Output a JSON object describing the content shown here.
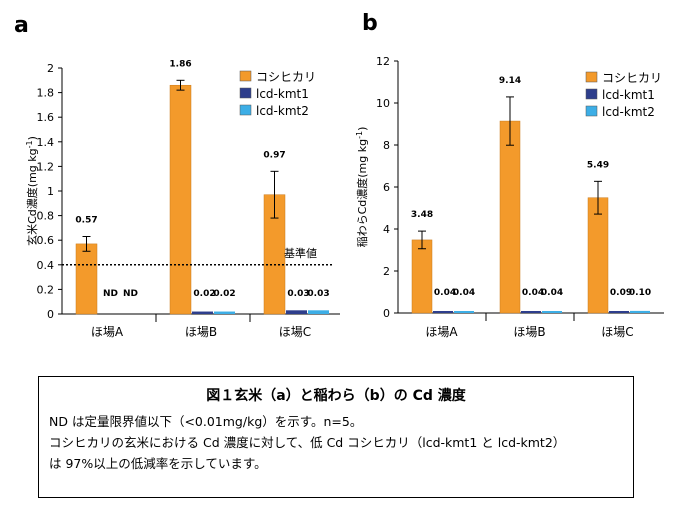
{
  "chart_data": [
    {
      "panel_label": "a",
      "type": "bar",
      "ylabel": "玄米Cd濃度(mg kg",
      "ylabel_sup": "-1",
      "ylabel_close": ")",
      "ylim": [
        0,
        2
      ],
      "yticks": [
        "0",
        "0.2",
        "0.4",
        "0.6",
        "0.8",
        "1",
        "1.2",
        "1.4",
        "1.6",
        "1.8",
        "2"
      ],
      "categories": [
        "ほ場A",
        "ほ場B",
        "ほ場C"
      ],
      "series": [
        {
          "name": "コシヒカリ",
          "color": "#F39A2B",
          "values": [
            0.57,
            1.86,
            0.97
          ],
          "errors": [
            0.06,
            0.04,
            0.19
          ],
          "labels": [
            "0.57",
            "1.86",
            "0.97"
          ]
        },
        {
          "name": "lcd-kmt1",
          "color": "#2E3E8C",
          "values": [
            0,
            0.02,
            0.03
          ],
          "errors": [
            0,
            0,
            0
          ],
          "labels": [
            "ND",
            "0.02",
            "0.03"
          ]
        },
        {
          "name": "lcd-kmt2",
          "color": "#3DAEE6",
          "values": [
            0,
            0.02,
            0.03
          ],
          "errors": [
            0,
            0,
            0
          ],
          "labels": [
            "ND",
            "0.02",
            "0.03"
          ]
        }
      ],
      "reference_line": {
        "value": 0.4,
        "label": "基準値"
      },
      "grid": false,
      "legend": "top-right"
    },
    {
      "panel_label": "b",
      "type": "bar",
      "ylabel": "稲わらCd濃度(mg kg",
      "ylabel_sup": "-1",
      "ylabel_close": ")",
      "ylim": [
        0,
        12
      ],
      "yticks": [
        "0",
        "2",
        "4",
        "6",
        "8",
        "10",
        "12"
      ],
      "categories": [
        "ほ場A",
        "ほ場B",
        "ほ場C"
      ],
      "series": [
        {
          "name": "コシヒカリ",
          "color": "#F39A2B",
          "values": [
            3.48,
            9.14,
            5.49
          ],
          "errors": [
            0.42,
            1.15,
            0.78
          ],
          "labels": [
            "3.48",
            "9.14",
            "5.49"
          ]
        },
        {
          "name": "lcd-kmt1",
          "color": "#2E3E8C",
          "values": [
            0.04,
            0.04,
            0.09
          ],
          "errors": [
            0,
            0,
            0
          ],
          "labels": [
            "0.04",
            "0.04",
            "0.09"
          ]
        },
        {
          "name": "lcd-kmt2",
          "color": "#3DAEE6",
          "values": [
            0.04,
            0.04,
            0.1
          ],
          "errors": [
            0,
            0,
            0
          ],
          "labels": [
            "0.04",
            "0.04",
            "0.10"
          ]
        }
      ],
      "grid": false,
      "legend": "top-right"
    }
  ],
  "caption": {
    "title": "図１玄米（a）と稲わら（b）の Cd 濃度",
    "line1": "ND は定量限界値以下（<0.01mg/kg）を示す。n=5。",
    "line2": "コシヒカリの玄米における Cd 濃度に対して、低 Cd コシヒカリ（lcd-kmt1 と lcd-kmt2）",
    "line3": "は 97%以上の低減率を示しています。"
  }
}
